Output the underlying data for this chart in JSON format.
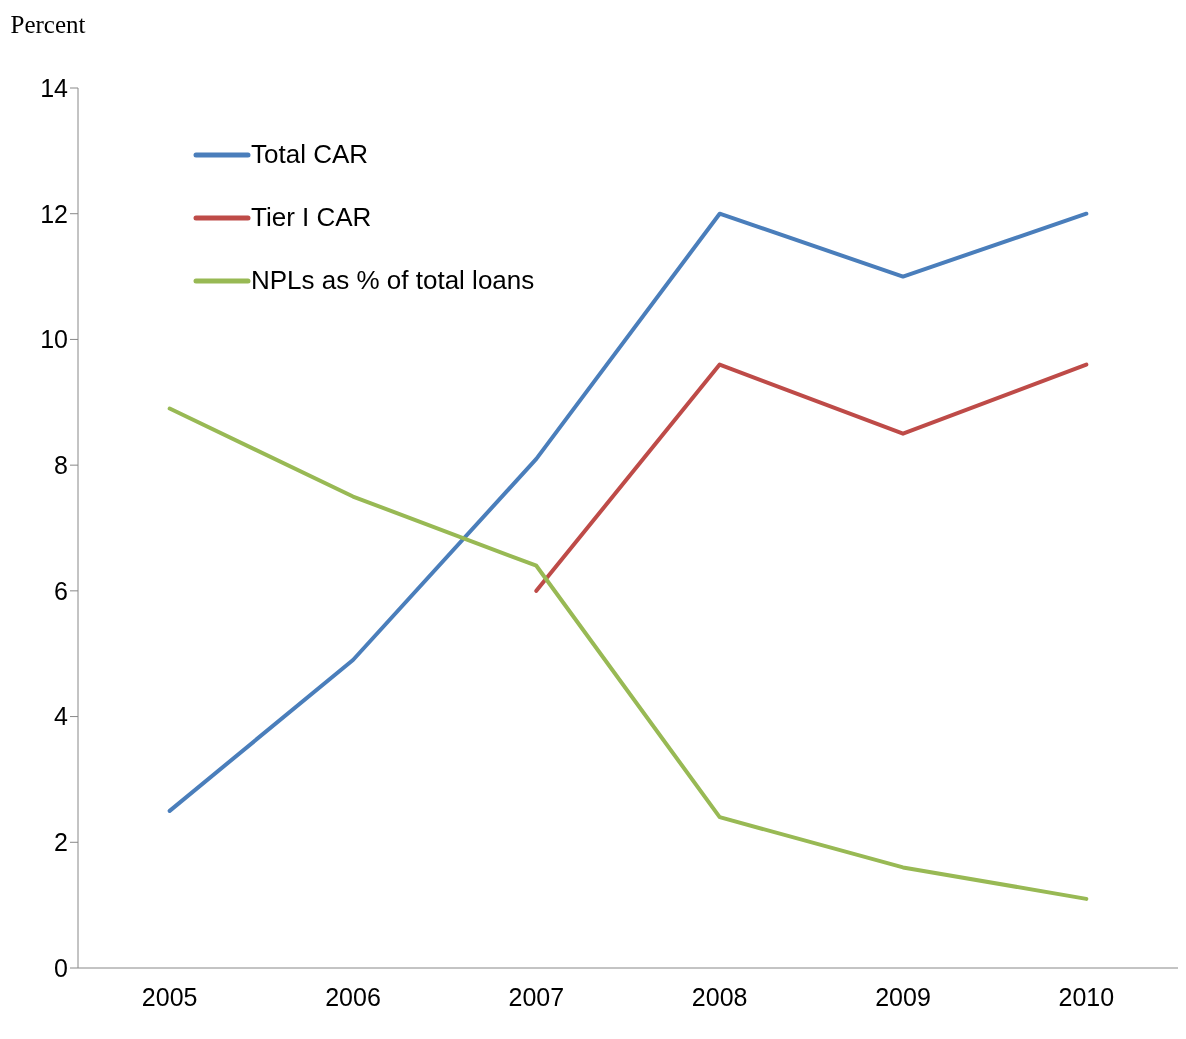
{
  "chart_data": {
    "type": "line",
    "ylabel": "Percent",
    "categories": [
      "2005",
      "2006",
      "2007",
      "2008",
      "2009",
      "2010"
    ],
    "series": [
      {
        "name": "Total CAR",
        "color": "#4a7ebb",
        "values": [
          2.5,
          4.9,
          8.1,
          12.0,
          11.0,
          12.0
        ]
      },
      {
        "name": "Tier I CAR",
        "color": "#be4b48",
        "values": [
          null,
          null,
          6.0,
          9.6,
          8.5,
          9.6
        ]
      },
      {
        "name": "NPLs as % of total loans",
        "color": "#98b954",
        "values": [
          8.9,
          7.5,
          6.4,
          2.4,
          1.6,
          1.1
        ]
      }
    ],
    "ylim": [
      0,
      14
    ],
    "yticks": [
      0,
      2,
      4,
      6,
      8,
      10,
      12,
      14
    ],
    "grid": false,
    "legend": "top left",
    "marker": "none",
    "line_style": "solid"
  }
}
